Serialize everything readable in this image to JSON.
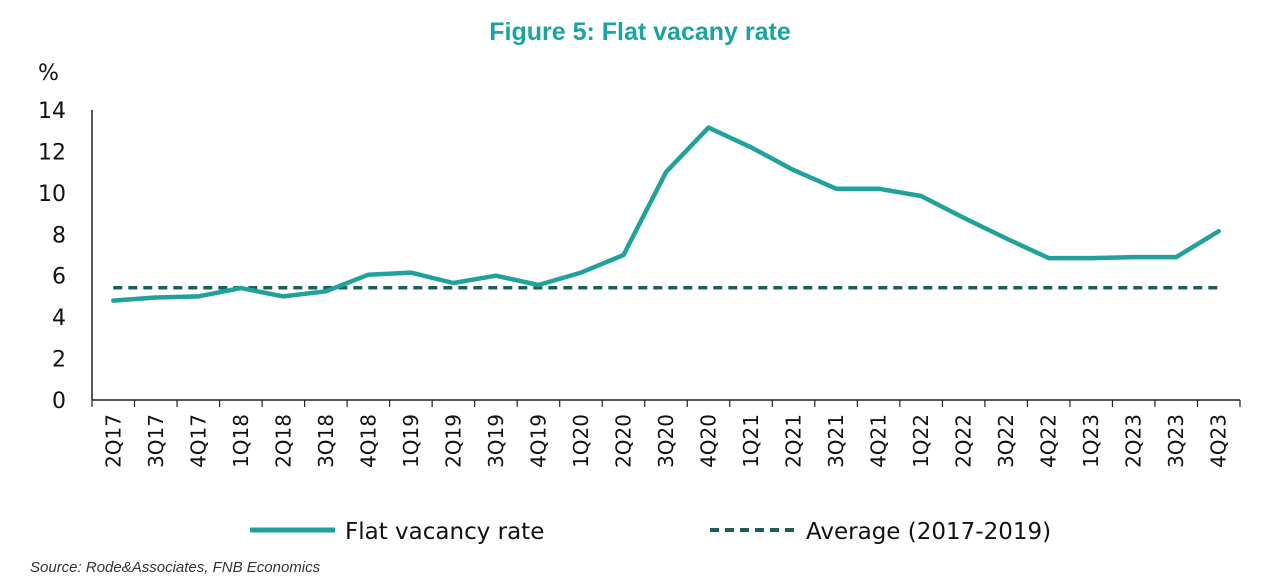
{
  "colors": {
    "title": "#1aa3a0",
    "series": "#21a19c",
    "average": "#1b5f5c",
    "axis": "#222222"
  },
  "footer": {
    "source": "Source: Rode&Associates, FNB Economics"
  },
  "chart_data": {
    "type": "line",
    "title": "Figure 5: Flat vacany rate",
    "ylabel": "%",
    "xlabel": "",
    "ylim": [
      0,
      14
    ],
    "yticks": [
      0,
      2,
      4,
      6,
      8,
      10,
      12,
      14
    ],
    "grid": false,
    "legend_position": "bottom",
    "categories": [
      "2Q17",
      "3Q17",
      "4Q17",
      "1Q18",
      "2Q18",
      "3Q18",
      "4Q18",
      "1Q19",
      "2Q19",
      "3Q19",
      "4Q19",
      "1Q20",
      "2Q20",
      "3Q20",
      "4Q20",
      "1Q21",
      "2Q21",
      "3Q21",
      "4Q21",
      "1Q22",
      "2Q22",
      "3Q22",
      "4Q22",
      "1Q23",
      "2Q23",
      "3Q23",
      "4Q23"
    ],
    "series": [
      {
        "name": "Flat vacancy rate",
        "style": "solid",
        "values": [
          4.8,
          4.95,
          5.0,
          5.4,
          5.0,
          5.25,
          6.05,
          6.15,
          5.65,
          6.0,
          5.55,
          6.15,
          7.0,
          11.0,
          13.15,
          12.2,
          11.1,
          10.2,
          10.2,
          9.85,
          8.8,
          7.8,
          6.85,
          6.85,
          6.9,
          6.9,
          8.15
        ]
      },
      {
        "name": "Average (2017-2019)",
        "style": "dashed",
        "values": [
          5.42,
          5.42,
          5.42,
          5.42,
          5.42,
          5.42,
          5.42,
          5.42,
          5.42,
          5.42,
          5.42,
          5.42,
          5.42,
          5.42,
          5.42,
          5.42,
          5.42,
          5.42,
          5.42,
          5.42,
          5.42,
          5.42,
          5.42,
          5.42,
          5.42,
          5.42,
          5.42
        ]
      }
    ]
  }
}
